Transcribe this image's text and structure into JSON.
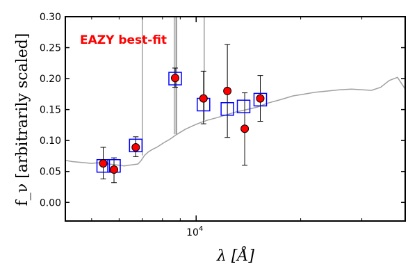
{
  "chart_data": {
    "type": "scatter",
    "title": "",
    "xlabel": "λ [Å]",
    "ylabel": "f_ν [arbitrarily scaled]",
    "xscale": "log",
    "xlim": [
      4200,
      40000
    ],
    "ylim": [
      -0.03,
      0.3
    ],
    "yticks": [
      0.0,
      0.05,
      0.1,
      0.15,
      0.2,
      0.25,
      0.3
    ],
    "ytick_labels": [
      "0.00",
      "0.05",
      "0.10",
      "0.15",
      "0.20",
      "0.25",
      "0.30"
    ],
    "xticks": [
      10000
    ],
    "xtick_labels": [
      "10^4"
    ],
    "grid": false,
    "annotation": {
      "text": "EAZY best-fit",
      "color": "#ff0000",
      "position": "top-left"
    },
    "observed": {
      "marker": "red-circle",
      "color": "#ff0000",
      "points": [
        {
          "x": 5400,
          "y": 0.063,
          "err_lo": 0.025,
          "err_hi": 0.026
        },
        {
          "x": 5800,
          "y": 0.053,
          "err_lo": 0.021,
          "err_hi": 0.019
        },
        {
          "x": 6700,
          "y": 0.089,
          "err_lo": 0.015,
          "err_hi": 0.017
        },
        {
          "x": 8700,
          "y": 0.201,
          "err_lo": 0.015,
          "err_hi": 0.016
        },
        {
          "x": 10500,
          "y": 0.168,
          "err_lo": 0.041,
          "err_hi": 0.044
        },
        {
          "x": 12300,
          "y": 0.18,
          "err_lo": 0.075,
          "err_hi": 0.075
        },
        {
          "x": 13800,
          "y": 0.119,
          "err_lo": 0.059,
          "err_hi": 0.058
        },
        {
          "x": 15300,
          "y": 0.168,
          "err_lo": 0.037,
          "err_hi": 0.037
        }
      ]
    },
    "model_photometry": {
      "marker": "blue-open-square",
      "color": "#0000ff",
      "points": [
        {
          "x": 5400,
          "y": 0.059
        },
        {
          "x": 5800,
          "y": 0.059
        },
        {
          "x": 6700,
          "y": 0.092
        },
        {
          "x": 8700,
          "y": 0.2
        },
        {
          "x": 10500,
          "y": 0.158
        },
        {
          "x": 12300,
          "y": 0.151
        },
        {
          "x": 13700,
          "y": 0.155
        },
        {
          "x": 15300,
          "y": 0.166
        }
      ]
    },
    "template": {
      "color": "#a0a0a0",
      "x": [
        4200,
        4400,
        4600,
        4800,
        5000,
        5200,
        5400,
        5600,
        5800,
        6000,
        6200,
        6400,
        6600,
        6800,
        6950,
        7100,
        7300,
        7500,
        7700,
        7900,
        8100,
        8400,
        8800,
        9300,
        9800,
        10300,
        10800,
        11500,
        12300,
        13000,
        14000,
        15000,
        16000,
        17500,
        19000,
        20500,
        22000,
        24000,
        26000,
        28000,
        30000,
        32000,
        34000,
        36000,
        38000,
        40000
      ],
      "y": [
        0.068,
        0.066,
        0.065,
        0.064,
        0.063,
        0.064,
        0.063,
        0.062,
        0.061,
        0.06,
        0.059,
        0.06,
        0.061,
        0.062,
        0.068,
        0.076,
        0.082,
        0.086,
        0.089,
        0.093,
        0.097,
        0.102,
        0.11,
        0.118,
        0.124,
        0.129,
        0.133,
        0.137,
        0.142,
        0.146,
        0.15,
        0.154,
        0.16,
        0.166,
        0.172,
        0.175,
        0.178,
        0.18,
        0.182,
        0.183,
        0.182,
        0.181,
        0.186,
        0.197,
        0.202,
        0.183
      ],
      "emission_lines": [
        {
          "x": 7000,
          "top": 0.3
        },
        {
          "x": 8650,
          "top": 0.3
        },
        {
          "x": 8750,
          "top": 0.3
        },
        {
          "x": 8790,
          "top": 0.3
        },
        {
          "x": 10550,
          "top": 0.3
        }
      ]
    }
  }
}
